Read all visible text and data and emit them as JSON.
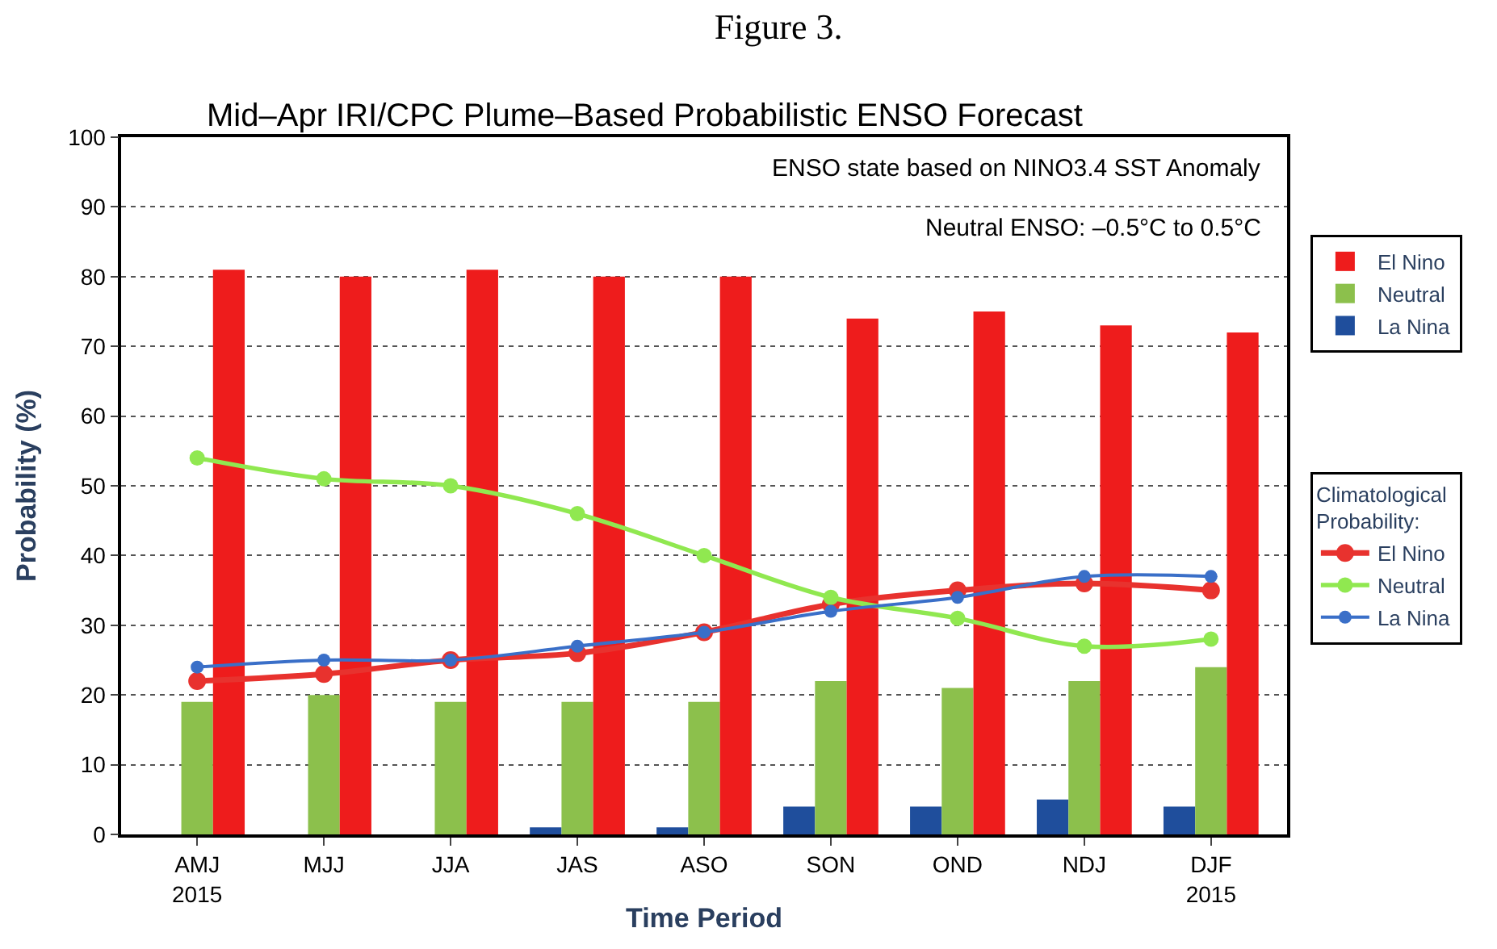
{
  "chart_data": {
    "type": "bar",
    "title": "Figure 3.",
    "subtitle": "Mid–Apr IRI/CPC Plume–Based Probabilistic ENSO Forecast",
    "xlabel": "Time Period",
    "ylabel": "Probability (%)",
    "categories": [
      "AMJ\n2015",
      "MJJ",
      "JJA",
      "JAS",
      "ASO",
      "SON",
      "OND",
      "NDJ",
      "DJF\n2015"
    ],
    "series": [
      {
        "name": "La Nina",
        "color": "#1f4e9c",
        "values": [
          0,
          0,
          0,
          1,
          1,
          4,
          4,
          5,
          4
        ]
      },
      {
        "name": "Neutral",
        "color": "#8cc04c",
        "values": [
          19,
          20,
          19,
          19,
          19,
          22,
          21,
          22,
          24
        ]
      },
      {
        "name": "El Nino",
        "color": "#ee1c1c",
        "values": [
          81,
          80,
          81,
          80,
          80,
          74,
          75,
          73,
          72
        ]
      },
      {
        "name": "El Nino",
        "type": "line",
        "marker": "circle",
        "color": "#e8322e",
        "values": [
          22,
          23,
          25,
          26,
          29,
          33,
          35,
          36,
          35
        ]
      },
      {
        "name": "Neutral",
        "type": "line",
        "marker": "circle",
        "color": "#90e850",
        "values": [
          54,
          51,
          50,
          46,
          40,
          34,
          31,
          27,
          28
        ]
      },
      {
        "name": "La Nina",
        "type": "line",
        "marker": "circle",
        "color": "#3a6fc8",
        "values": [
          24,
          25,
          25,
          27,
          29,
          32,
          34,
          37,
          37
        ]
      }
    ],
    "legend_title": "Climatological\nProbability:",
    "annotations": [
      "ENSO state based on NINO3.4 SST Anomaly",
      "Neutral ENSO: –0.5°C to 0.5°C"
    ],
    "ylim": [
      0,
      100
    ],
    "yticks": [
      0,
      10,
      20,
      30,
      40,
      50,
      60,
      70,
      80,
      90,
      100
    ],
    "grid": "y",
    "legend": "right"
  }
}
